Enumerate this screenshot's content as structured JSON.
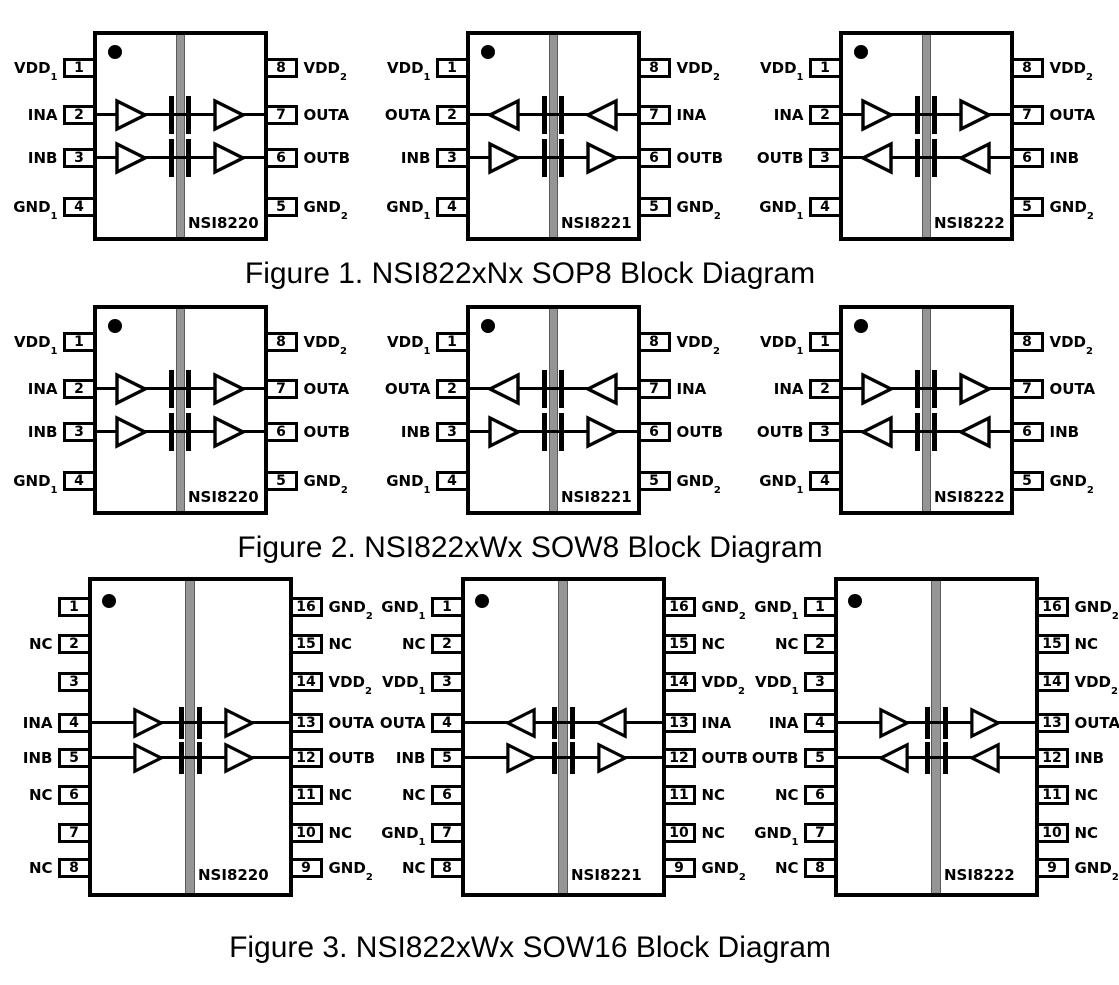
{
  "colors": {
    "ink": "#000000",
    "barrier_fill": "#959595",
    "barrier_edge": "#5b5b5b",
    "chip_fill": "#ffffff",
    "page_bg": "#ffffff"
  },
  "figures": [
    {
      "caption": "Figure 1. NSI822xNx SOP8 Block Diagram",
      "package": "SOP8",
      "chips": [
        {
          "name": "NSI8220",
          "pins_left": [
            {
              "num": "1",
              "label": "VDD",
              "sub": "1"
            },
            {
              "num": "2",
              "label": "INA",
              "sub": ""
            },
            {
              "num": "3",
              "label": "INB",
              "sub": ""
            },
            {
              "num": "4",
              "label": "GND",
              "sub": "1"
            }
          ],
          "pins_right": [
            {
              "num": "8",
              "label": "VDD",
              "sub": "2"
            },
            {
              "num": "7",
              "label": "OUTA",
              "sub": ""
            },
            {
              "num": "6",
              "label": "OUTB",
              "sub": ""
            },
            {
              "num": "5",
              "label": "GND",
              "sub": "2"
            }
          ],
          "channels": [
            {
              "row": 1,
              "dir": "right"
            },
            {
              "row": 2,
              "dir": "right"
            }
          ]
        },
        {
          "name": "NSI8221",
          "pins_left": [
            {
              "num": "1",
              "label": "VDD",
              "sub": "1"
            },
            {
              "num": "2",
              "label": "OUTA",
              "sub": ""
            },
            {
              "num": "3",
              "label": "INB",
              "sub": ""
            },
            {
              "num": "4",
              "label": "GND",
              "sub": "1"
            }
          ],
          "pins_right": [
            {
              "num": "8",
              "label": "VDD",
              "sub": "2"
            },
            {
              "num": "7",
              "label": "INA",
              "sub": ""
            },
            {
              "num": "6",
              "label": "OUTB",
              "sub": ""
            },
            {
              "num": "5",
              "label": "GND",
              "sub": "2"
            }
          ],
          "channels": [
            {
              "row": 1,
              "dir": "left"
            },
            {
              "row": 2,
              "dir": "right"
            }
          ]
        },
        {
          "name": "NSI8222",
          "pins_left": [
            {
              "num": "1",
              "label": "VDD",
              "sub": "1"
            },
            {
              "num": "2",
              "label": "INA",
              "sub": ""
            },
            {
              "num": "3",
              "label": "OUTB",
              "sub": ""
            },
            {
              "num": "4",
              "label": "GND",
              "sub": "1"
            }
          ],
          "pins_right": [
            {
              "num": "8",
              "label": "VDD",
              "sub": "2"
            },
            {
              "num": "7",
              "label": "OUTA",
              "sub": ""
            },
            {
              "num": "6",
              "label": "INB",
              "sub": ""
            },
            {
              "num": "5",
              "label": "GND",
              "sub": "2"
            }
          ],
          "channels": [
            {
              "row": 1,
              "dir": "right"
            },
            {
              "row": 2,
              "dir": "left"
            }
          ]
        }
      ]
    },
    {
      "caption": "Figure 2. NSI822xWx SOW8 Block Diagram",
      "package": "SOW8",
      "chips": [
        {
          "name": "NSI8220",
          "pins_left": [
            {
              "num": "1",
              "label": "VDD",
              "sub": "1"
            },
            {
              "num": "2",
              "label": "INA",
              "sub": ""
            },
            {
              "num": "3",
              "label": "INB",
              "sub": ""
            },
            {
              "num": "4",
              "label": "GND",
              "sub": "1"
            }
          ],
          "pins_right": [
            {
              "num": "8",
              "label": "VDD",
              "sub": "2"
            },
            {
              "num": "7",
              "label": "OUTA",
              "sub": ""
            },
            {
              "num": "6",
              "label": "OUTB",
              "sub": ""
            },
            {
              "num": "5",
              "label": "GND",
              "sub": "2"
            }
          ],
          "channels": [
            {
              "row": 1,
              "dir": "right"
            },
            {
              "row": 2,
              "dir": "right"
            }
          ]
        },
        {
          "name": "NSI8221",
          "pins_left": [
            {
              "num": "1",
              "label": "VDD",
              "sub": "1"
            },
            {
              "num": "2",
              "label": "OUTA",
              "sub": ""
            },
            {
              "num": "3",
              "label": "INB",
              "sub": ""
            },
            {
              "num": "4",
              "label": "GND",
              "sub": "1"
            }
          ],
          "pins_right": [
            {
              "num": "8",
              "label": "VDD",
              "sub": "2"
            },
            {
              "num": "7",
              "label": "INA",
              "sub": ""
            },
            {
              "num": "6",
              "label": "OUTB",
              "sub": ""
            },
            {
              "num": "5",
              "label": "GND",
              "sub": "2"
            }
          ],
          "channels": [
            {
              "row": 1,
              "dir": "left"
            },
            {
              "row": 2,
              "dir": "right"
            }
          ]
        },
        {
          "name": "NSI8222",
          "pins_left": [
            {
              "num": "1",
              "label": "VDD",
              "sub": "1"
            },
            {
              "num": "2",
              "label": "INA",
              "sub": ""
            },
            {
              "num": "3",
              "label": "OUTB",
              "sub": ""
            },
            {
              "num": "4",
              "label": "GND",
              "sub": "1"
            }
          ],
          "pins_right": [
            {
              "num": "8",
              "label": "VDD",
              "sub": "2"
            },
            {
              "num": "7",
              "label": "OUTA",
              "sub": ""
            },
            {
              "num": "6",
              "label": "INB",
              "sub": ""
            },
            {
              "num": "5",
              "label": "GND",
              "sub": "2"
            }
          ],
          "channels": [
            {
              "row": 1,
              "dir": "right"
            },
            {
              "row": 2,
              "dir": "left"
            }
          ]
        }
      ]
    },
    {
      "caption": "Figure 3. NSI822xWx SOW16 Block Diagram",
      "package": "SOW16",
      "chips": [
        {
          "name": "NSI8220",
          "pins_left": [
            {
              "num": "1",
              "label": "",
              "sub": ""
            },
            {
              "num": "2",
              "label": "NC",
              "sub": ""
            },
            {
              "num": "3",
              "label": "",
              "sub": ""
            },
            {
              "num": "4",
              "label": "INA",
              "sub": ""
            },
            {
              "num": "5",
              "label": "INB",
              "sub": ""
            },
            {
              "num": "6",
              "label": "NC",
              "sub": ""
            },
            {
              "num": "7",
              "label": "",
              "sub": ""
            },
            {
              "num": "8",
              "label": "NC",
              "sub": ""
            }
          ],
          "pins_right": [
            {
              "num": "16",
              "label": "GND",
              "sub": "2"
            },
            {
              "num": "15",
              "label": "NC",
              "sub": ""
            },
            {
              "num": "14",
              "label": "VDD",
              "sub": "2"
            },
            {
              "num": "13",
              "label": "OUTA",
              "sub": ""
            },
            {
              "num": "12",
              "label": "OUTB",
              "sub": ""
            },
            {
              "num": "11",
              "label": "NC",
              "sub": ""
            },
            {
              "num": "10",
              "label": "NC",
              "sub": ""
            },
            {
              "num": "9",
              "label": "GND",
              "sub": "2"
            }
          ],
          "channels": [
            {
              "row": 3,
              "dir": "right"
            },
            {
              "row": 4,
              "dir": "right"
            }
          ]
        },
        {
          "name": "NSI8221",
          "pins_left": [
            {
              "num": "1",
              "label": "GND",
              "sub": "1"
            },
            {
              "num": "2",
              "label": "NC",
              "sub": ""
            },
            {
              "num": "3",
              "label": "VDD",
              "sub": "1"
            },
            {
              "num": "4",
              "label": "OUTA",
              "sub": ""
            },
            {
              "num": "5",
              "label": "INB",
              "sub": ""
            },
            {
              "num": "6",
              "label": "NC",
              "sub": ""
            },
            {
              "num": "7",
              "label": "GND",
              "sub": "1"
            },
            {
              "num": "8",
              "label": "NC",
              "sub": ""
            }
          ],
          "pins_right": [
            {
              "num": "16",
              "label": "GND",
              "sub": "2"
            },
            {
              "num": "15",
              "label": "NC",
              "sub": ""
            },
            {
              "num": "14",
              "label": "VDD",
              "sub": "2"
            },
            {
              "num": "13",
              "label": "INA",
              "sub": ""
            },
            {
              "num": "12",
              "label": "OUTB",
              "sub": ""
            },
            {
              "num": "11",
              "label": "NC",
              "sub": ""
            },
            {
              "num": "10",
              "label": "NC",
              "sub": ""
            },
            {
              "num": "9",
              "label": "GND",
              "sub": "2"
            }
          ],
          "channels": [
            {
              "row": 3,
              "dir": "left"
            },
            {
              "row": 4,
              "dir": "right"
            }
          ]
        },
        {
          "name": "NSI8222",
          "pins_left": [
            {
              "num": "1",
              "label": "GND",
              "sub": "1"
            },
            {
              "num": "2",
              "label": "NC",
              "sub": ""
            },
            {
              "num": "3",
              "label": "VDD",
              "sub": "1"
            },
            {
              "num": "4",
              "label": "INA",
              "sub": ""
            },
            {
              "num": "5",
              "label": "OUTB",
              "sub": ""
            },
            {
              "num": "6",
              "label": "NC",
              "sub": ""
            },
            {
              "num": "7",
              "label": "GND",
              "sub": "1"
            },
            {
              "num": "8",
              "label": "NC",
              "sub": ""
            }
          ],
          "pins_right": [
            {
              "num": "16",
              "label": "GND",
              "sub": "2"
            },
            {
              "num": "15",
              "label": "NC",
              "sub": ""
            },
            {
              "num": "14",
              "label": "VDD",
              "sub": "2"
            },
            {
              "num": "13",
              "label": "OUTA",
              "sub": ""
            },
            {
              "num": "12",
              "label": "INB",
              "sub": ""
            },
            {
              "num": "11",
              "label": "NC",
              "sub": ""
            },
            {
              "num": "10",
              "label": "NC",
              "sub": ""
            },
            {
              "num": "9",
              "label": "GND",
              "sub": "2"
            }
          ],
          "channels": [
            {
              "row": 3,
              "dir": "right"
            },
            {
              "row": 4,
              "dir": "left"
            }
          ]
        }
      ]
    }
  ]
}
